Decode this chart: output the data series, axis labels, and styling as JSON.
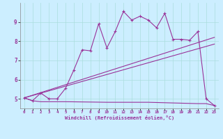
{
  "xlabel": "Windchill (Refroidissement éolien,°C)",
  "background_color": "#cceeff",
  "grid_color": "#aadddd",
  "line_color": "#993399",
  "xlim": [
    -0.5,
    23.5
  ],
  "ylim": [
    4.5,
    10.0
  ],
  "xticks": [
    0,
    1,
    2,
    3,
    4,
    5,
    6,
    7,
    8,
    9,
    10,
    11,
    12,
    13,
    14,
    15,
    16,
    17,
    18,
    19,
    20,
    21,
    22,
    23
  ],
  "yticks": [
    5,
    6,
    7,
    8,
    9
  ],
  "line1_x": [
    0,
    1,
    2,
    3,
    4,
    5,
    6,
    7,
    8,
    9,
    10,
    11,
    12,
    13,
    14,
    15,
    16,
    17,
    18,
    19,
    20,
    21,
    22,
    23
  ],
  "line1_y": [
    5.05,
    4.9,
    5.3,
    5.0,
    5.0,
    5.55,
    6.5,
    7.55,
    7.5,
    8.9,
    7.65,
    8.5,
    9.55,
    9.1,
    9.3,
    9.1,
    8.7,
    9.45,
    8.1,
    8.1,
    8.05,
    8.5,
    5.0,
    4.65
  ],
  "line2_x": [
    0,
    23
  ],
  "line2_y": [
    5.05,
    8.2
  ],
  "line3_x": [
    0,
    23
  ],
  "line3_y": [
    5.05,
    7.85
  ],
  "line4_x": [
    0,
    1,
    2,
    3,
    4,
    5,
    10,
    15,
    21,
    22,
    23
  ],
  "line4_y": [
    5.05,
    4.9,
    4.85,
    4.85,
    4.85,
    4.85,
    4.82,
    4.82,
    4.75,
    4.75,
    4.65
  ]
}
